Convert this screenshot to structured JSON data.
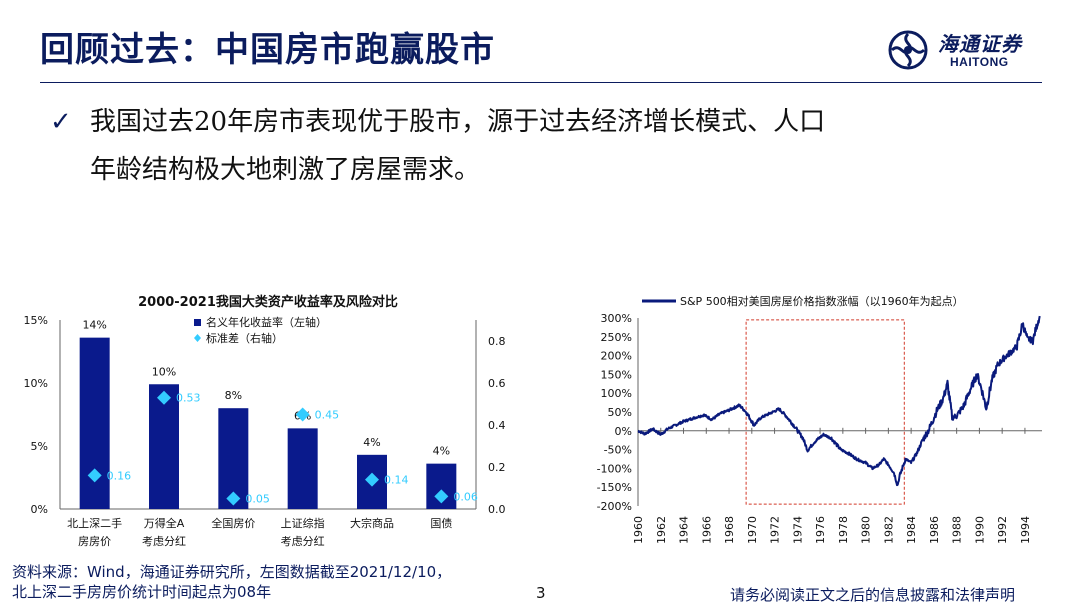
{
  "slide": {
    "title": "回顾过去：中国房市跑赢股市",
    "bullet_check": "✓",
    "bullet_line1": "我国过去20年房市表现优于股市，源于过去经济增长模式、人口",
    "bullet_line2": "年龄结构极大地刺激了房屋需求。",
    "logo_cn": "海通证券",
    "logo_en": "HAITONG",
    "source_line1": "资料来源：Wind，海通证券研究所，左图数据截至2021/12/10，",
    "source_line2": "北上深二手房房价统计时间起点为08年",
    "page_number": "3",
    "disclaimer": "请务必阅读正文之后的信息披露和法律声明"
  },
  "colors": {
    "brand": "#0b1c5e",
    "bar": "#0a1a8c",
    "marker": "#33ccff",
    "line": "#0a1a7c",
    "highlight_box": "#d23a2a"
  },
  "chart_data": [
    {
      "type": "bar",
      "title": "2000-2021我国大类资产收益率及风险对比",
      "categories": [
        [
          "北上深二手",
          "房房价"
        ],
        [
          "万得全A",
          "考虑分红"
        ],
        [
          "全国房价"
        ],
        [
          "上证综指",
          "考虑分红"
        ],
        [
          "大宗商品"
        ],
        [
          "国债"
        ]
      ],
      "series": [
        {
          "name": "名义年化收益率（左轴）",
          "axis": "left",
          "values": [
            13.6,
            9.9,
            8.0,
            6.4,
            4.3,
            3.6
          ],
          "labels": [
            "14%",
            "10%",
            "8%",
            "6%",
            "4%",
            "4%"
          ]
        },
        {
          "name": "标准差（右轴）",
          "axis": "right",
          "marker": "diamond",
          "values": [
            0.16,
            0.53,
            0.05,
            0.45,
            0.14,
            0.06
          ],
          "labels": [
            "0.16",
            "0.53",
            "0.05",
            "0.45",
            "0.14",
            "0.06"
          ]
        }
      ],
      "left_axis": {
        "ylim": [
          0,
          15
        ],
        "ticks": [
          "0%",
          "5%",
          "10%",
          "15%"
        ],
        "tick_values": [
          0,
          5,
          10,
          15
        ]
      },
      "right_axis": {
        "ylim": [
          0,
          0.9
        ],
        "ticks": [
          "0.0",
          "0.2",
          "0.4",
          "0.6",
          "0.8"
        ],
        "tick_values": [
          0,
          0.2,
          0.4,
          0.6,
          0.8
        ]
      },
      "legend_position": "top-center",
      "grid": false
    },
    {
      "type": "line",
      "series": [
        {
          "name": "S&P 500相对美国房屋价格指数涨幅（以1960年为起点）"
        }
      ],
      "x_ticks": [
        "1960",
        "1962",
        "1964",
        "1966",
        "1968",
        "1970",
        "1972",
        "1974",
        "1976",
        "1978",
        "1980",
        "1982",
        "1984",
        "1986",
        "1988",
        "1990",
        "1992",
        "1994"
      ],
      "xlim": [
        1960,
        1995.5
      ],
      "ylim": [
        -200,
        300
      ],
      "y_ticks": [
        "300%",
        "250%",
        "200%",
        "150%",
        "100%",
        "50%",
        "0%",
        "-50%",
        "-100%",
        "-150%",
        "-200%"
      ],
      "y_tick_values": [
        300,
        250,
        200,
        150,
        100,
        50,
        0,
        -50,
        -100,
        -150,
        -200
      ],
      "anchors": [
        [
          1960.0,
          0
        ],
        [
          1960.6,
          -8
        ],
        [
          1961.3,
          5
        ],
        [
          1962.0,
          -10
        ],
        [
          1962.6,
          5
        ],
        [
          1963.3,
          15
        ],
        [
          1964.0,
          25
        ],
        [
          1965.0,
          35
        ],
        [
          1965.8,
          42
        ],
        [
          1966.5,
          30
        ],
        [
          1967.2,
          45
        ],
        [
          1968.0,
          55
        ],
        [
          1968.9,
          68
        ],
        [
          1969.5,
          50
        ],
        [
          1970.2,
          15
        ],
        [
          1970.8,
          35
        ],
        [
          1971.5,
          45
        ],
        [
          1972.4,
          58
        ],
        [
          1973.0,
          40
        ],
        [
          1973.8,
          10
        ],
        [
          1974.5,
          -20
        ],
        [
          1974.9,
          -52
        ],
        [
          1975.5,
          -30
        ],
        [
          1976.3,
          -10
        ],
        [
          1977.0,
          -20
        ],
        [
          1977.8,
          -50
        ],
        [
          1978.5,
          -60
        ],
        [
          1979.2,
          -75
        ],
        [
          1980.0,
          -85
        ],
        [
          1980.6,
          -100
        ],
        [
          1981.2,
          -90
        ],
        [
          1981.6,
          -75
        ],
        [
          1982.0,
          -90
        ],
        [
          1982.5,
          -112
        ],
        [
          1982.8,
          -145
        ],
        [
          1983.0,
          -120
        ],
        [
          1983.5,
          -75
        ],
        [
          1984.0,
          -85
        ],
        [
          1984.5,
          -60
        ],
        [
          1985.0,
          -25
        ],
        [
          1985.6,
          5
        ],
        [
          1986.2,
          50
        ],
        [
          1986.8,
          85
        ],
        [
          1987.2,
          125
        ],
        [
          1987.6,
          35
        ],
        [
          1988.0,
          40
        ],
        [
          1988.6,
          65
        ],
        [
          1989.2,
          110
        ],
        [
          1989.8,
          150
        ],
        [
          1990.2,
          110
        ],
        [
          1990.6,
          60
        ],
        [
          1991.1,
          135
        ],
        [
          1991.6,
          175
        ],
        [
          1992.2,
          195
        ],
        [
          1992.8,
          210
        ],
        [
          1993.3,
          225
        ],
        [
          1993.8,
          285
        ],
        [
          1994.2,
          245
        ],
        [
          1994.7,
          240
        ],
        [
          1995.0,
          275
        ],
        [
          1995.3,
          305
        ]
      ],
      "highlight_range": {
        "x": [
          1969.5,
          1983.4
        ],
        "y": [
          -195,
          295
        ]
      },
      "legend_position": "top",
      "grid": false
    }
  ]
}
